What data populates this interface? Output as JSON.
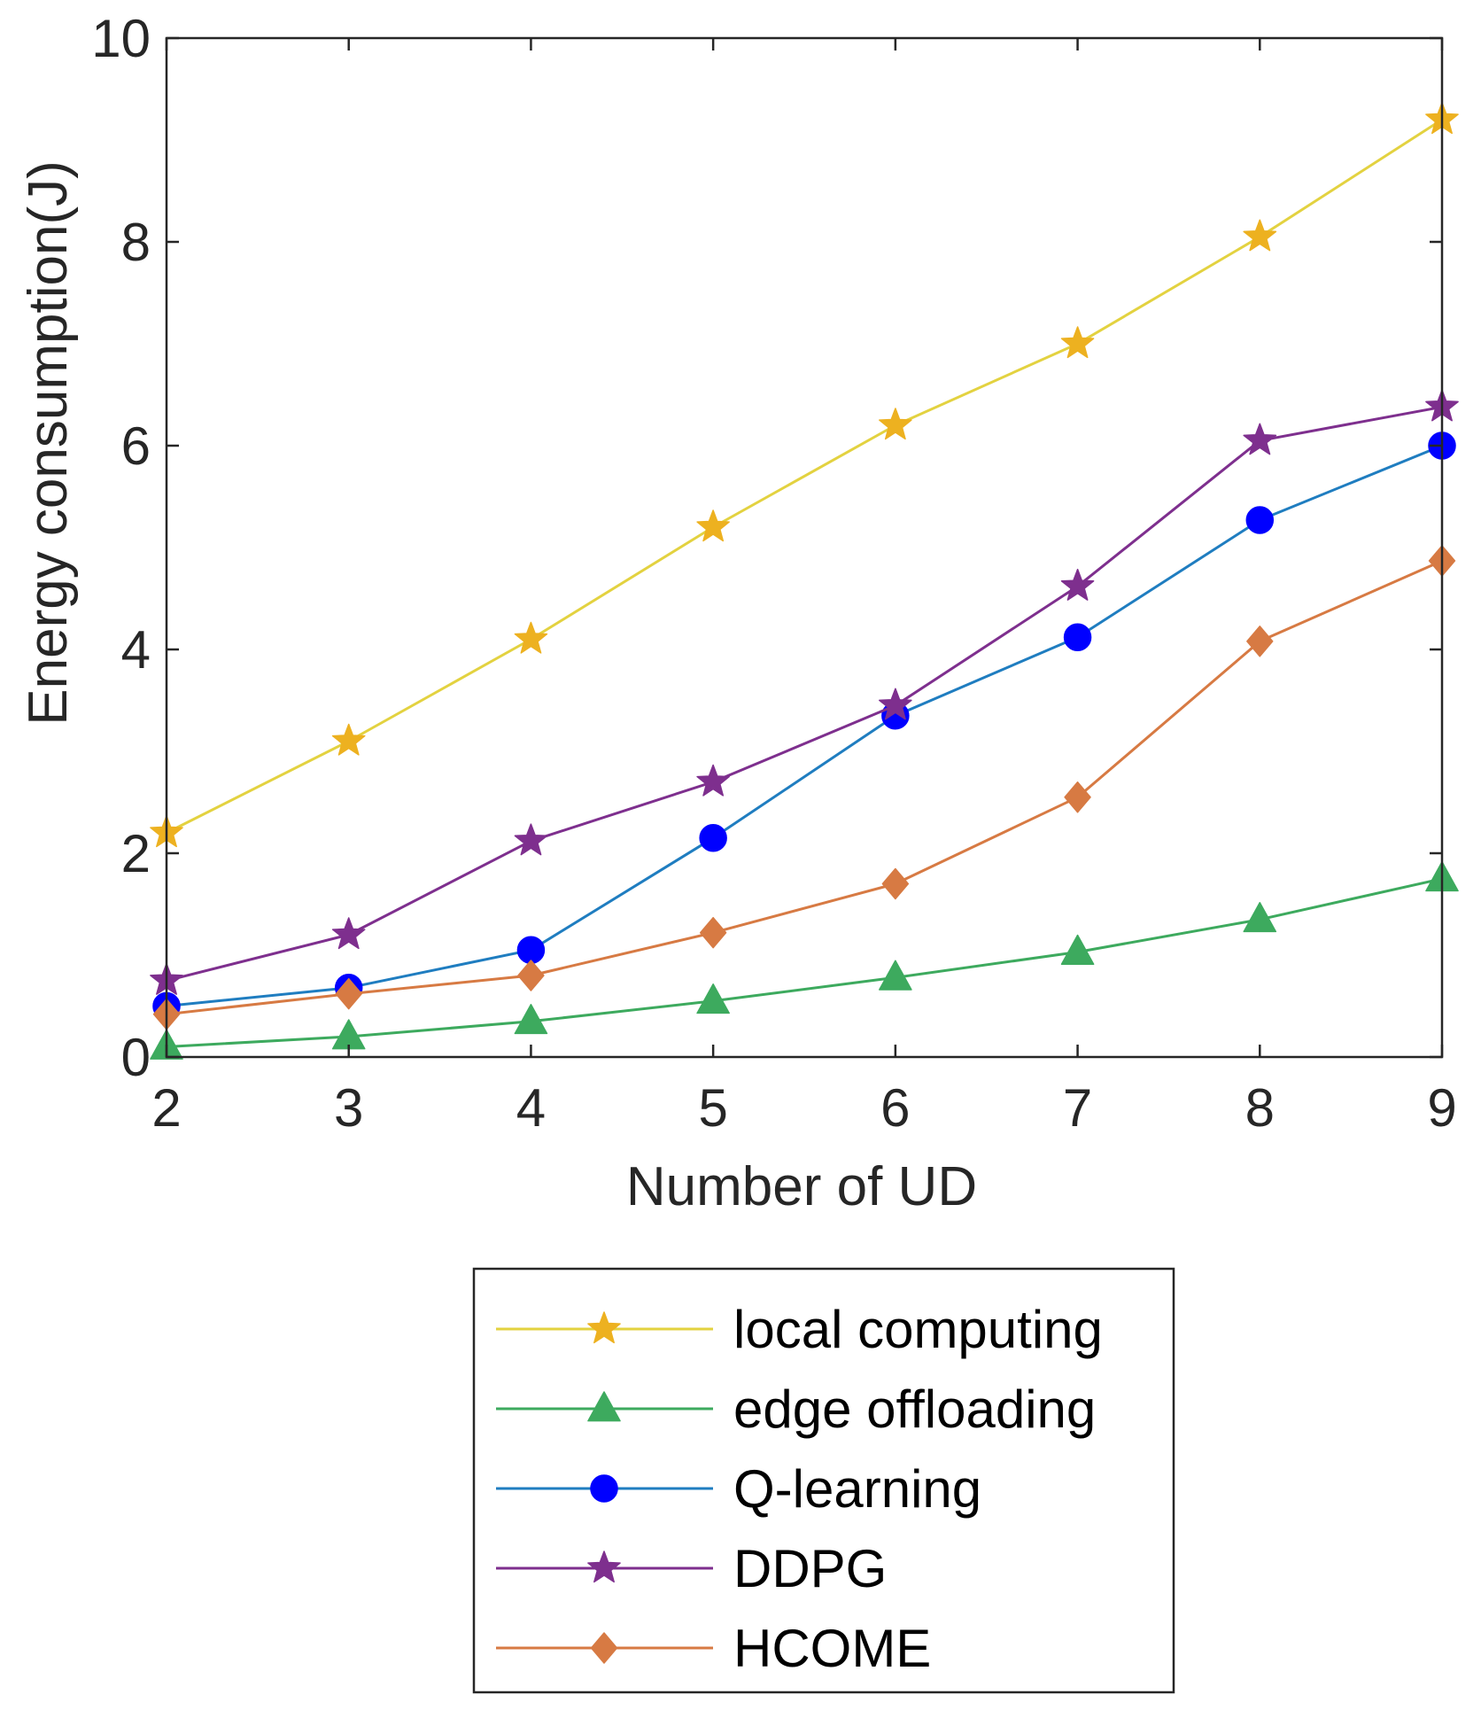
{
  "chart_data": {
    "type": "line",
    "title": "",
    "xlabel": "Number of UD",
    "ylabel": "Energy consumption(J)",
    "x": [
      2,
      3,
      4,
      5,
      6,
      7,
      8,
      9
    ],
    "xticks": [
      2,
      3,
      4,
      5,
      6,
      7,
      8,
      9
    ],
    "yticks": [
      0,
      2,
      4,
      6,
      8,
      10
    ],
    "xlim": [
      2,
      9
    ],
    "ylim": [
      0,
      10
    ],
    "grid": false,
    "legend_position": "below",
    "series": [
      {
        "name": "local computing",
        "color": "#EDB120",
        "line_color": "#E3D240",
        "marker": "star",
        "values": [
          2.2,
          3.1,
          4.1,
          5.2,
          6.2,
          7.0,
          8.05,
          9.2
        ]
      },
      {
        "name": "edge offloading",
        "color": "#3DAA5E",
        "line_color": "#3DAA5E",
        "marker": "triangle",
        "values": [
          0.1,
          0.2,
          0.35,
          0.55,
          0.78,
          1.03,
          1.35,
          1.75
        ]
      },
      {
        "name": "Q-learning",
        "color": "#0000FF",
        "line_color": "#1F7DC0",
        "marker": "circle",
        "values": [
          0.5,
          0.68,
          1.05,
          2.15,
          3.35,
          4.12,
          5.27,
          6.0
        ]
      },
      {
        "name": "DDPG",
        "color": "#7E2F8E",
        "line_color": "#7E2F8E",
        "marker": "star",
        "values": [
          0.75,
          1.2,
          2.12,
          2.7,
          3.45,
          4.62,
          6.05,
          6.38
        ]
      },
      {
        "name": "HCOME",
        "color": "#D77A43",
        "line_color": "#D77A43",
        "marker": "diamond",
        "values": [
          0.42,
          0.62,
          0.8,
          1.22,
          1.7,
          2.55,
          4.08,
          4.87
        ]
      }
    ]
  }
}
